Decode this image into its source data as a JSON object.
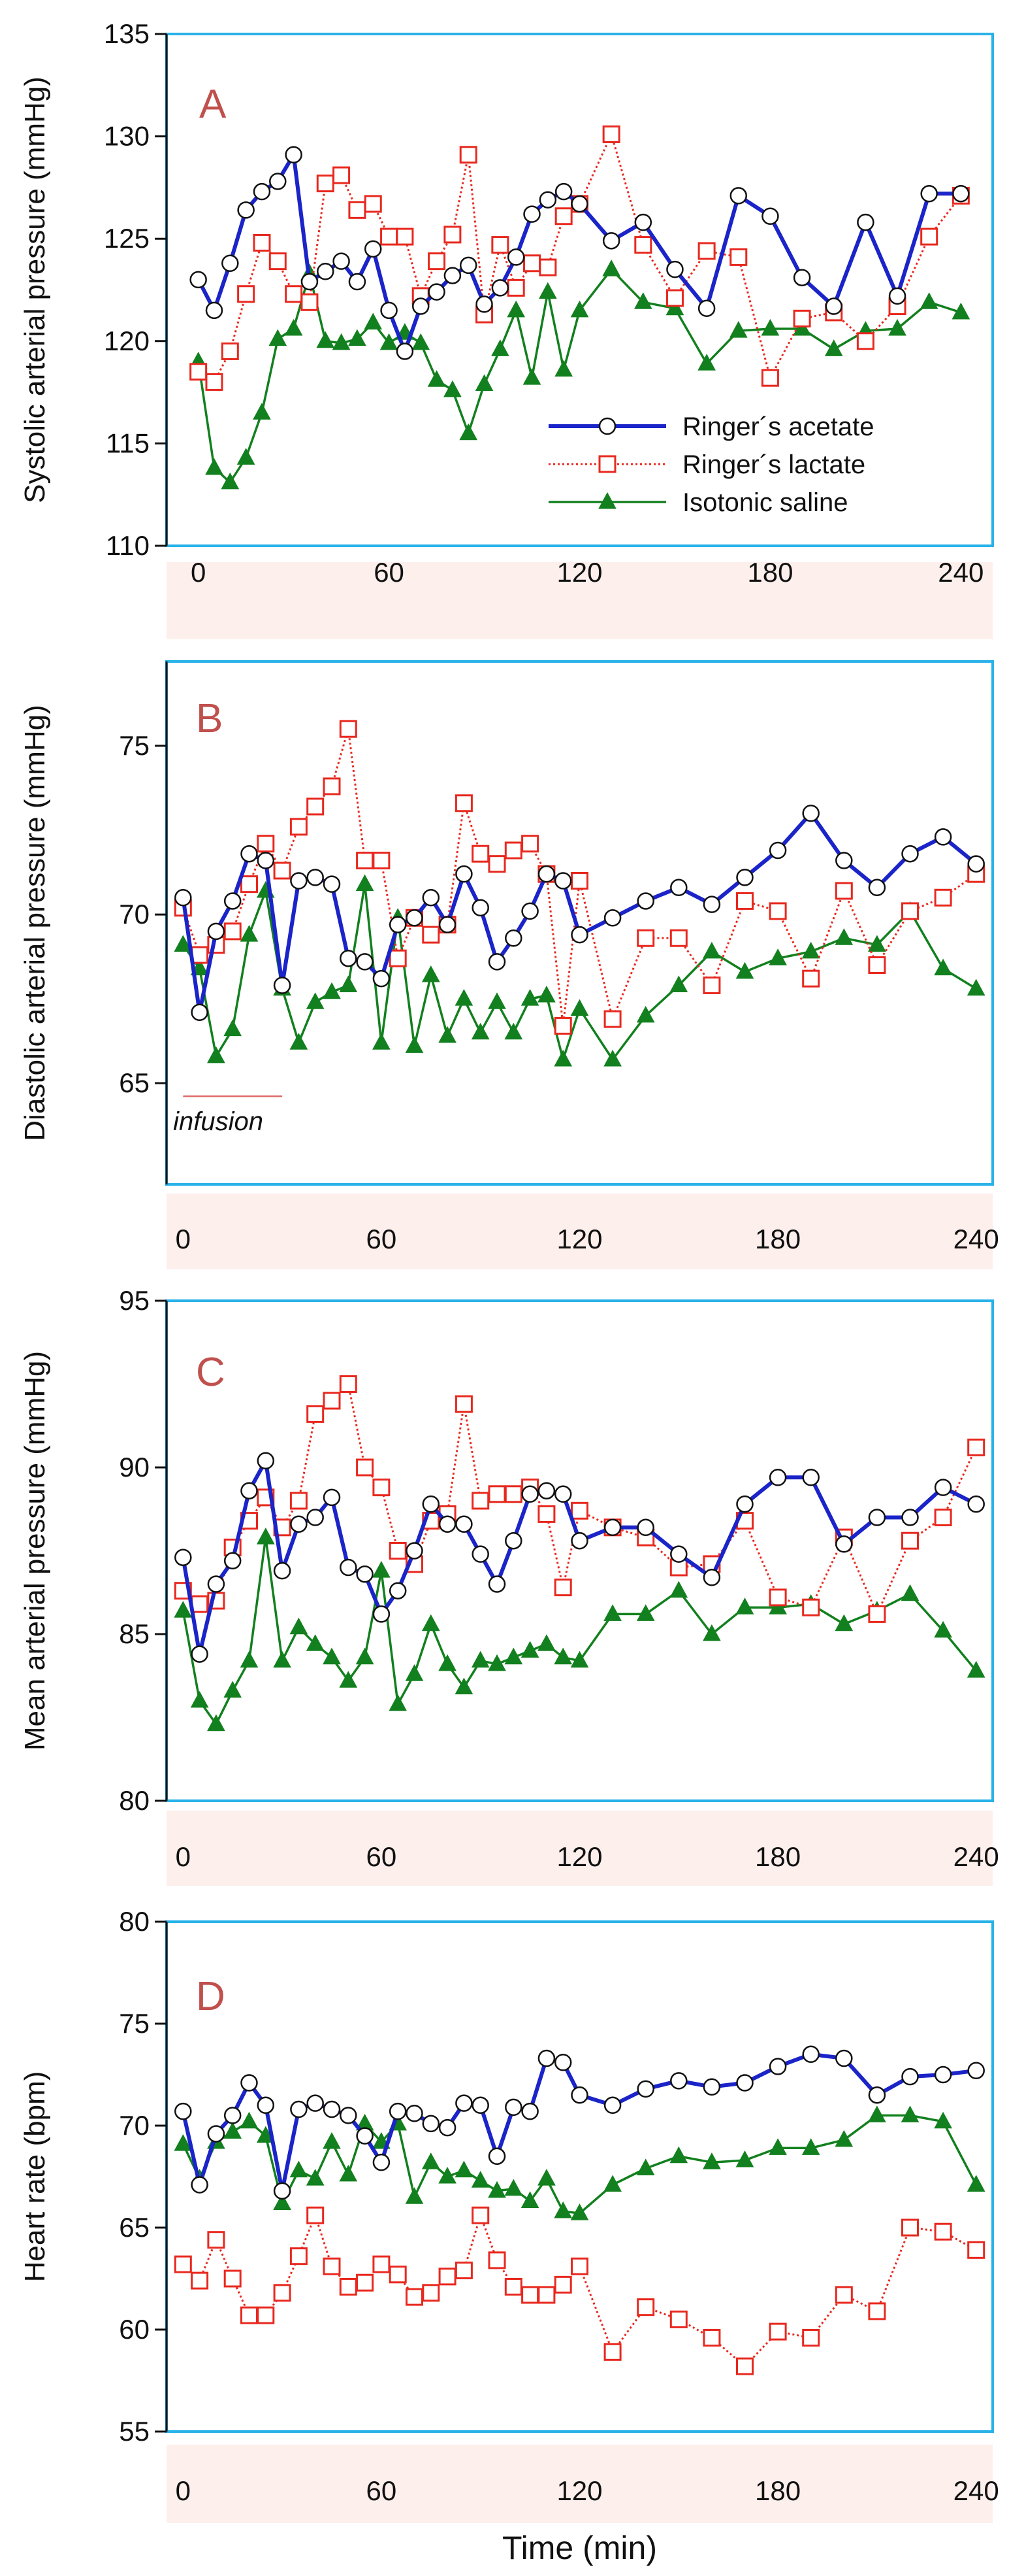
{
  "colors": {
    "acetate": "#1a24c8",
    "lactate": "#e8281e",
    "saline": "#12801e",
    "frame": "#29b2e8",
    "tick_band": "#fcefec",
    "panel_letter": "#c0504d",
    "infusion_line": "#e06a6a"
  },
  "legend": {
    "acetate": "Ringer´s acetate",
    "lactate": "Ringer´s lactate",
    "saline": "Isotonic saline"
  },
  "infusion_note": "infusion",
  "x_label": "Time (min)",
  "chart_data": [
    {
      "type": "line",
      "letter": "A",
      "ylabel": "Systolic arterial pressure (mmHg)",
      "ylim": [
        110,
        135
      ],
      "yticks": [
        "110",
        "115",
        "120",
        "125",
        "130",
        "135"
      ],
      "xlim": [
        -10,
        250
      ],
      "xticks": [
        "0",
        "60",
        "120",
        "180",
        "240"
      ],
      "legend_placement": "bottom-right",
      "infusion_bar": false,
      "series": [
        {
          "name": "Ringer´s acetate",
          "key": "acetate",
          "x": [
            0,
            5,
            10,
            15,
            20,
            25,
            30,
            35,
            40,
            45,
            50,
            55,
            60,
            65,
            70,
            75,
            80,
            85,
            90,
            95,
            100,
            105,
            110,
            115,
            120,
            130,
            140,
            150,
            160,
            170,
            180,
            190,
            200,
            210,
            220,
            230,
            240
          ],
          "y": [
            123,
            121.5,
            123.8,
            126.4,
            127.3,
            127.8,
            129.1,
            122.9,
            123.4,
            123.9,
            122.9,
            124.5,
            121.5,
            119.5,
            121.7,
            122.4,
            123.2,
            123.7,
            121.8,
            122.6,
            124.1,
            126.2,
            126.9,
            127.3,
            126.7,
            124.9,
            125.8,
            123.5,
            121.6,
            127.1,
            126.1,
            123.1,
            121.7,
            125.8,
            122.2,
            127.2,
            127.2
          ]
        },
        {
          "name": "Ringer´s lactate",
          "key": "lactate",
          "x": [
            0,
            5,
            10,
            15,
            20,
            25,
            30,
            35,
            40,
            45,
            50,
            55,
            60,
            65,
            70,
            75,
            80,
            85,
            90,
            95,
            100,
            105,
            110,
            115,
            120,
            130,
            140,
            150,
            160,
            170,
            180,
            190,
            200,
            210,
            220,
            230,
            240
          ],
          "y": [
            118.5,
            118,
            119.5,
            122.3,
            124.8,
            123.9,
            122.3,
            121.9,
            127.7,
            128.1,
            126.4,
            126.7,
            125.1,
            125.1,
            122.2,
            123.9,
            125.2,
            129.1,
            121.3,
            124.7,
            122.6,
            123.8,
            123.6,
            126.1,
            126.7,
            130.1,
            124.7,
            122.1,
            124.4,
            124.1,
            118.2,
            121.1,
            121.4,
            120,
            121.7,
            125.1,
            127.1
          ]
        },
        {
          "name": "Isotonic saline",
          "key": "saline",
          "x": [
            0,
            5,
            10,
            15,
            20,
            25,
            30,
            35,
            40,
            45,
            50,
            55,
            60,
            65,
            70,
            75,
            80,
            85,
            90,
            95,
            100,
            105,
            110,
            115,
            120,
            130,
            140,
            150,
            160,
            170,
            180,
            190,
            200,
            210,
            220,
            230,
            240
          ],
          "y": [
            119,
            113.8,
            113.1,
            114.3,
            116.5,
            120.1,
            120.6,
            123.3,
            120,
            119.9,
            120.1,
            120.9,
            119.9,
            120.4,
            119.9,
            118.1,
            117.6,
            115.5,
            117.9,
            119.6,
            121.5,
            118.2,
            122.4,
            118.6,
            121.5,
            123.5,
            121.9,
            121.6,
            118.9,
            120.5,
            120.6,
            120.6,
            119.6,
            120.5,
            120.6,
            121.9,
            121.4
          ]
        }
      ]
    },
    {
      "type": "line",
      "letter": "B",
      "ylabel": "Diastolic arterial  pressure (mmHg)",
      "ylim": [
        62,
        77.5
      ],
      "yticks": [
        "65",
        "70",
        "75"
      ],
      "xlim": [
        -5,
        245
      ],
      "xticks": [
        "0",
        "60",
        "120",
        "180",
        "240"
      ],
      "legend_placement": "none",
      "infusion_bar": true,
      "series": [
        {
          "name": "Ringer´s acetate",
          "key": "acetate",
          "x": [
            0,
            5,
            10,
            15,
            20,
            25,
            30,
            35,
            40,
            45,
            50,
            55,
            60,
            65,
            70,
            75,
            80,
            85,
            90,
            95,
            100,
            105,
            110,
            115,
            120,
            130,
            140,
            150,
            160,
            170,
            180,
            190,
            200,
            210,
            220,
            230,
            240
          ],
          "y": [
            70.5,
            67.1,
            69.5,
            70.4,
            71.8,
            71.6,
            67.9,
            71,
            71.1,
            70.9,
            68.7,
            68.6,
            68.1,
            69.7,
            69.9,
            70.5,
            69.7,
            71.2,
            70.2,
            68.6,
            69.3,
            70.1,
            71.2,
            71,
            69.4,
            69.9,
            70.4,
            70.8,
            70.3,
            71.1,
            71.9,
            73,
            71.6,
            70.8,
            71.8,
            72.3,
            71.5
          ]
        },
        {
          "name": "Ringer´s lactate",
          "key": "lactate",
          "x": [
            0,
            5,
            10,
            15,
            20,
            25,
            30,
            35,
            40,
            45,
            50,
            55,
            60,
            65,
            70,
            75,
            80,
            85,
            90,
            95,
            100,
            105,
            110,
            115,
            120,
            130,
            140,
            150,
            160,
            170,
            180,
            190,
            200,
            210,
            220,
            230,
            240
          ],
          "y": [
            70.2,
            68.8,
            69.1,
            69.5,
            70.9,
            72.1,
            71.3,
            72.6,
            73.2,
            73.8,
            75.5,
            71.6,
            71.6,
            68.7,
            69.9,
            69.4,
            69.7,
            73.3,
            71.8,
            71.5,
            71.9,
            72.1,
            71.2,
            66.7,
            71,
            66.9,
            69.3,
            69.3,
            67.9,
            70.4,
            70.1,
            68.1,
            70.7,
            68.5,
            70.1,
            70.5,
            71.2
          ]
        },
        {
          "name": "Isotonic saline",
          "key": "saline",
          "x": [
            0,
            5,
            10,
            15,
            20,
            25,
            30,
            35,
            40,
            45,
            50,
            55,
            60,
            65,
            70,
            75,
            80,
            85,
            90,
            95,
            100,
            105,
            110,
            115,
            120,
            130,
            140,
            150,
            160,
            170,
            180,
            190,
            200,
            210,
            220,
            230,
            240
          ],
          "y": [
            69.1,
            68.4,
            65.8,
            66.6,
            69.4,
            70.7,
            67.8,
            66.2,
            67.4,
            67.7,
            67.9,
            70.9,
            66.2,
            69.9,
            66.1,
            68.2,
            66.4,
            67.5,
            66.5,
            67.4,
            66.5,
            67.5,
            67.6,
            65.7,
            67.2,
            65.7,
            67,
            67.9,
            68.9,
            68.3,
            68.7,
            68.9,
            69.3,
            69.1,
            70.1,
            68.4,
            67.8
          ]
        }
      ]
    },
    {
      "type": "line",
      "letter": "C",
      "ylabel": "Mean arterial pressure (mmHg)",
      "ylim": [
        80,
        95
      ],
      "yticks": [
        "80",
        "85",
        "90",
        "95"
      ],
      "xlim": [
        -5,
        245
      ],
      "xticks": [
        "0",
        "60",
        "120",
        "180",
        "240"
      ],
      "legend_placement": "none",
      "infusion_bar": false,
      "series": [
        {
          "name": "Ringer´s acetate",
          "key": "acetate",
          "x": [
            0,
            5,
            10,
            15,
            20,
            25,
            30,
            35,
            40,
            45,
            50,
            55,
            60,
            65,
            70,
            75,
            80,
            85,
            90,
            95,
            100,
            105,
            110,
            115,
            120,
            130,
            140,
            150,
            160,
            170,
            180,
            190,
            200,
            210,
            220,
            230,
            240
          ],
          "y": [
            87.3,
            84.4,
            86.5,
            87.2,
            89.3,
            90.2,
            86.9,
            88.3,
            88.5,
            89.1,
            87,
            86.8,
            85.6,
            86.3,
            87.5,
            88.9,
            88.3,
            88.3,
            87.4,
            86.5,
            87.8,
            89.2,
            89.3,
            89.2,
            87.8,
            88.2,
            88.2,
            87.4,
            86.7,
            88.9,
            89.7,
            89.7,
            87.7,
            88.5,
            88.5,
            89.4,
            88.9
          ]
        },
        {
          "name": "Ringer´s lactate",
          "key": "lactate",
          "x": [
            0,
            5,
            10,
            15,
            20,
            25,
            30,
            35,
            40,
            45,
            50,
            55,
            60,
            65,
            70,
            75,
            80,
            85,
            90,
            95,
            100,
            105,
            110,
            115,
            120,
            130,
            140,
            150,
            160,
            170,
            180,
            190,
            200,
            210,
            220,
            230,
            240
          ],
          "y": [
            86.3,
            85.9,
            86,
            87.6,
            88.4,
            89.1,
            88.2,
            89,
            91.6,
            92,
            92.5,
            90,
            89.4,
            87.5,
            87.1,
            88.4,
            88.6,
            91.9,
            89,
            89.2,
            89.2,
            89.4,
            88.6,
            86.4,
            88.7,
            88.2,
            87.9,
            87,
            87.1,
            88.4,
            86.1,
            85.8,
            87.9,
            85.6,
            87.8,
            88.5,
            90.6
          ]
        },
        {
          "name": "Isotonic saline",
          "key": "saline",
          "x": [
            0,
            5,
            10,
            15,
            20,
            25,
            30,
            35,
            40,
            45,
            50,
            55,
            60,
            65,
            70,
            75,
            80,
            85,
            90,
            95,
            100,
            105,
            110,
            115,
            120,
            130,
            140,
            150,
            160,
            170,
            180,
            190,
            200,
            210,
            220,
            230,
            240
          ],
          "y": [
            85.7,
            83,
            82.3,
            83.3,
            84.2,
            87.9,
            84.2,
            85.2,
            84.7,
            84.3,
            83.6,
            84.3,
            86.9,
            82.9,
            83.8,
            85.3,
            84.1,
            83.4,
            84.2,
            84.1,
            84.3,
            84.5,
            84.7,
            84.3,
            84.2,
            85.6,
            85.6,
            86.3,
            85,
            85.8,
            85.8,
            85.9,
            85.3,
            85.7,
            86.2,
            85.1,
            83.9
          ]
        }
      ]
    },
    {
      "type": "line",
      "letter": "D",
      "ylabel": "Heart rate (bpm)",
      "ylim": [
        55,
        80
      ],
      "yticks": [
        "55",
        "60",
        "65",
        "70",
        "75",
        "80"
      ],
      "xlim": [
        -5,
        245
      ],
      "xticks": [
        "0",
        "60",
        "120",
        "180",
        "240"
      ],
      "legend_placement": "none",
      "infusion_bar": false,
      "series": [
        {
          "name": "Ringer´s acetate",
          "key": "acetate",
          "x": [
            0,
            5,
            10,
            15,
            20,
            25,
            30,
            35,
            40,
            45,
            50,
            55,
            60,
            65,
            70,
            75,
            80,
            85,
            90,
            95,
            100,
            105,
            110,
            115,
            120,
            130,
            140,
            150,
            160,
            170,
            180,
            190,
            200,
            210,
            220,
            230,
            240
          ],
          "y": [
            70.7,
            67.1,
            69.6,
            70.5,
            72.1,
            71,
            66.8,
            70.8,
            71.1,
            70.8,
            70.5,
            69.5,
            68.2,
            70.7,
            70.6,
            70.1,
            69.9,
            71.1,
            71,
            68.5,
            70.9,
            70.7,
            73.3,
            73.1,
            71.5,
            71,
            71.8,
            72.2,
            71.9,
            72.1,
            72.9,
            73.5,
            73.3,
            71.5,
            72.4,
            72.5,
            72.7
          ]
        },
        {
          "name": "Ringer´s lactate",
          "key": "lactate",
          "x": [
            0,
            5,
            10,
            15,
            20,
            25,
            30,
            35,
            40,
            45,
            50,
            55,
            60,
            65,
            70,
            75,
            80,
            85,
            90,
            95,
            100,
            105,
            110,
            115,
            120,
            130,
            140,
            150,
            160,
            170,
            180,
            190,
            200,
            210,
            220,
            230,
            240
          ],
          "y": [
            63.2,
            62.4,
            64.4,
            62.5,
            60.7,
            60.7,
            61.8,
            63.6,
            65.6,
            63.1,
            62.1,
            62.3,
            63.2,
            62.7,
            61.6,
            61.8,
            62.6,
            62.9,
            65.6,
            63.4,
            62.1,
            61.7,
            61.7,
            62.2,
            63.1,
            58.9,
            61.1,
            60.5,
            59.6,
            58.2,
            59.9,
            59.6,
            61.7,
            60.9,
            65,
            64.8,
            63.9
          ]
        },
        {
          "name": "Isotonic saline",
          "key": "saline",
          "x": [
            0,
            5,
            10,
            15,
            20,
            25,
            30,
            35,
            40,
            45,
            50,
            55,
            60,
            65,
            70,
            75,
            80,
            85,
            90,
            95,
            100,
            105,
            110,
            115,
            120,
            130,
            140,
            150,
            160,
            170,
            180,
            190,
            200,
            210,
            220,
            230,
            240
          ],
          "y": [
            69.1,
            67.4,
            69.2,
            69.7,
            70.2,
            69.5,
            66.2,
            67.8,
            67.4,
            69.2,
            67.6,
            70.1,
            69.2,
            70.1,
            66.5,
            68.2,
            67.5,
            67.8,
            67.3,
            66.8,
            66.9,
            66.3,
            67.4,
            65.8,
            65.7,
            67.1,
            67.9,
            68.5,
            68.2,
            68.3,
            68.9,
            68.9,
            69.3,
            70.5,
            70.5,
            70.2,
            67.1
          ]
        }
      ]
    }
  ]
}
